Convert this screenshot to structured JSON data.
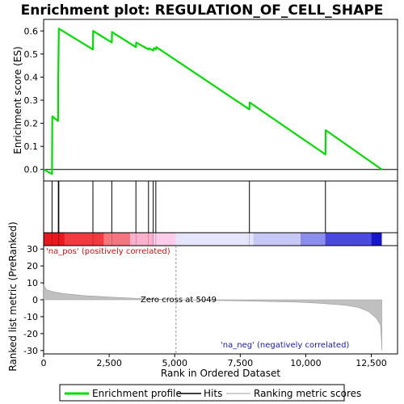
{
  "chart_data": {
    "type": "line",
    "title": "Enrichment plot: REGULATION_OF_CELL_SHAPE",
    "xlabel": "Rank in Ordered Dataset",
    "xlim": [
      0,
      13500
    ],
    "x_ticks": [
      0,
      2500,
      5000,
      7500,
      10000,
      12500
    ],
    "x_tick_labels": [
      "0",
      "2,500",
      "5,000",
      "7,500",
      "10,000",
      "12,500"
    ],
    "es_panel": {
      "ylabel": "Enrichment score (ES)",
      "ylim": [
        -0.05,
        0.65
      ],
      "y_ticks": [
        0.0,
        0.1,
        0.2,
        0.3,
        0.4,
        0.5,
        0.6
      ],
      "y_tick_labels": [
        "0.0",
        "0.1",
        "0.2",
        "0.3",
        "0.4",
        "0.5",
        "0.6"
      ],
      "series": [
        {
          "name": "Enrichment profile",
          "color": "#00dd00",
          "points": [
            [
              0,
              0.0
            ],
            [
              320,
              -0.02
            ],
            [
              330,
              0.23
            ],
            [
              550,
              0.21
            ],
            [
              560,
              0.41
            ],
            [
              580,
              0.61
            ],
            [
              1880,
              0.52
            ],
            [
              1890,
              0.6
            ],
            [
              2600,
              0.55
            ],
            [
              2610,
              0.595
            ],
            [
              3520,
              0.53
            ],
            [
              3530,
              0.55
            ],
            [
              4000,
              0.52
            ],
            [
              4020,
              0.525
            ],
            [
              4180,
              0.515
            ],
            [
              4200,
              0.525
            ],
            [
              4280,
              0.52
            ],
            [
              4300,
              0.53
            ],
            [
              7850,
              0.26
            ],
            [
              7860,
              0.29
            ],
            [
              10750,
              0.065
            ],
            [
              10760,
              0.17
            ],
            [
              12900,
              0.0
            ]
          ]
        }
      ]
    },
    "hits": [
      320,
      560,
      580,
      1880,
      2600,
      3520,
      4000,
      4180,
      4280,
      7850,
      10750
    ],
    "hits_label": "Hits",
    "ranking_panel": {
      "ylabel": "Ranked list metric (PreRanked)",
      "ylim": [
        -32,
        32
      ],
      "y_ticks": [
        -30,
        -20,
        -10,
        0,
        10,
        20,
        30
      ],
      "y_tick_labels": [
        "-30",
        "-20",
        "-10",
        "0",
        "10",
        "20",
        "30"
      ],
      "series": [
        {
          "name": "Ranking metric scores",
          "color": "#c0c0c0",
          "points": [
            [
              0,
              9
            ],
            [
              100,
              6
            ],
            [
              300,
              5
            ],
            [
              700,
              3.8
            ],
            [
              1500,
              2.5
            ],
            [
              2500,
              1.6
            ],
            [
              3500,
              0.9
            ],
            [
              4500,
              0.3
            ],
            [
              5049,
              0
            ],
            [
              6500,
              -0.4
            ],
            [
              8000,
              -0.8
            ],
            [
              9500,
              -1.3
            ],
            [
              10500,
              -2.0
            ],
            [
              11500,
              -3.2
            ],
            [
              12000,
              -4.5
            ],
            [
              12400,
              -7
            ],
            [
              12700,
              -11
            ],
            [
              12850,
              -15
            ],
            [
              12880,
              -22
            ],
            [
              12900,
              -30
            ]
          ]
        }
      ],
      "zero_cross_rank": 5049,
      "zero_cross_label": "Zero cross at 5049",
      "pos_label": "'na_pos' (positively correlated)",
      "neg_label": "'na_neg' (negatively correlated)"
    },
    "colorbar": {
      "segments": [
        {
          "from": 0,
          "to": 800,
          "color": "#e8191c"
        },
        {
          "from": 800,
          "to": 2300,
          "color": "#f03a3f"
        },
        {
          "from": 2300,
          "to": 3300,
          "color": "#f6767f"
        },
        {
          "from": 3300,
          "to": 4200,
          "color": "#fbb0cc"
        },
        {
          "from": 4200,
          "to": 5049,
          "color": "#fcccea"
        },
        {
          "from": 5049,
          "to": 8000,
          "color": "#e4e4fa"
        },
        {
          "from": 8000,
          "to": 9800,
          "color": "#c8c8f6"
        },
        {
          "from": 9800,
          "to": 10750,
          "color": "#8c8ced"
        },
        {
          "from": 10750,
          "to": 12500,
          "color": "#4a4ae0"
        },
        {
          "from": 12500,
          "to": 12900,
          "color": "#1515cc"
        }
      ]
    },
    "legend": [
      {
        "label": "Enrichment profile",
        "color": "#00dd00"
      },
      {
        "label": "Hits",
        "color": "#000000"
      },
      {
        "label": "Ranking metric scores",
        "color": "#c0c0c0"
      }
    ]
  }
}
